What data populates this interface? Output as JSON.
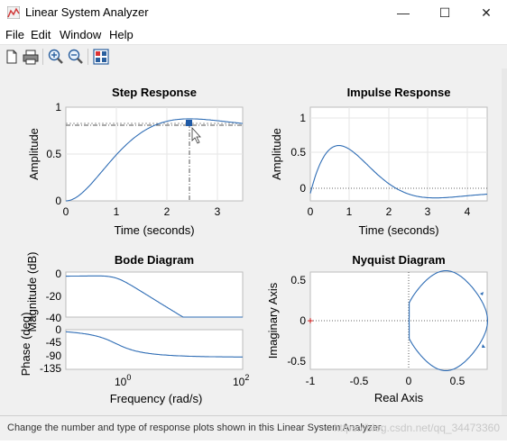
{
  "window": {
    "title": "Linear System Analyzer",
    "minimize_glyph": "—",
    "maximize_glyph": "☐",
    "close_glyph": "✕"
  },
  "menu": [
    "File",
    "Edit",
    "Window",
    "Help"
  ],
  "toolbar": {
    "icons": [
      "new-file-icon",
      "print-icon",
      "zoom-in-icon",
      "zoom-out-icon",
      "plot-config-icon"
    ]
  },
  "colors": {
    "curve": "#2f6db5",
    "axes_bg": "#ffffff",
    "grid": "#e6e6e6",
    "steady_line": "#555555",
    "marker": "#1f5aa6",
    "nyquist_origin": "#cc0000"
  },
  "plots": {
    "step": {
      "title": "Step Response",
      "xlabel": "Time (seconds)",
      "ylabel": "Amplitude",
      "xticks": [
        "0",
        "1",
        "2",
        "3"
      ],
      "yticks": [
        "0",
        "0.5",
        "1"
      ],
      "xlim": [
        0,
        3.5
      ],
      "ylim": [
        0,
        1
      ],
      "steady_state": 0.8,
      "peak": [
        2.4,
        0.82
      ]
    },
    "impulse": {
      "title": "Impulse Response",
      "xlabel": "Time (seconds)",
      "ylabel": "Amplitude",
      "xticks": [
        "0",
        "1",
        "2",
        "3",
        "4"
      ],
      "yticks": [
        "0",
        "0.5",
        "1"
      ],
      "xlim": [
        0,
        4.5
      ],
      "ylim": [
        -0.1,
        1.15
      ]
    },
    "bode": {
      "title": "Bode Diagram",
      "ylabel_mag": "Magnitude (dB)",
      "ylabel_phase": "Phase (deg)",
      "xlabel": "Frequency  (rad/s)",
      "mag_yticks": [
        "0",
        "-20",
        "-40"
      ],
      "phase_yticks": [
        "0",
        "-45",
        "-90",
        "-135"
      ],
      "xtick_labels": [
        {
          "base": "10",
          "exp": "0"
        },
        {
          "base": "10",
          "exp": "2"
        }
      ],
      "xlim_log": [
        -0.5,
        2
      ],
      "mag_ylim": [
        -40,
        2
      ],
      "phase_ylim": [
        -135,
        0
      ]
    },
    "nyquist": {
      "title": "Nyquist Diagram",
      "xlabel": "Real Axis",
      "ylabel": "Imaginary Axis",
      "xticks": [
        "-1",
        "-0.5",
        "0",
        "0.5"
      ],
      "yticks": [
        "0.5",
        "0",
        "-0.5"
      ],
      "xlim": [
        -1,
        0.8
      ],
      "ylim": [
        -0.6,
        0.6
      ]
    }
  },
  "status": {
    "text": "Change the number and type of response plots shown in this Linear System Analyzer.",
    "watermark": "https://blog.csdn.net/qq_34473360"
  }
}
